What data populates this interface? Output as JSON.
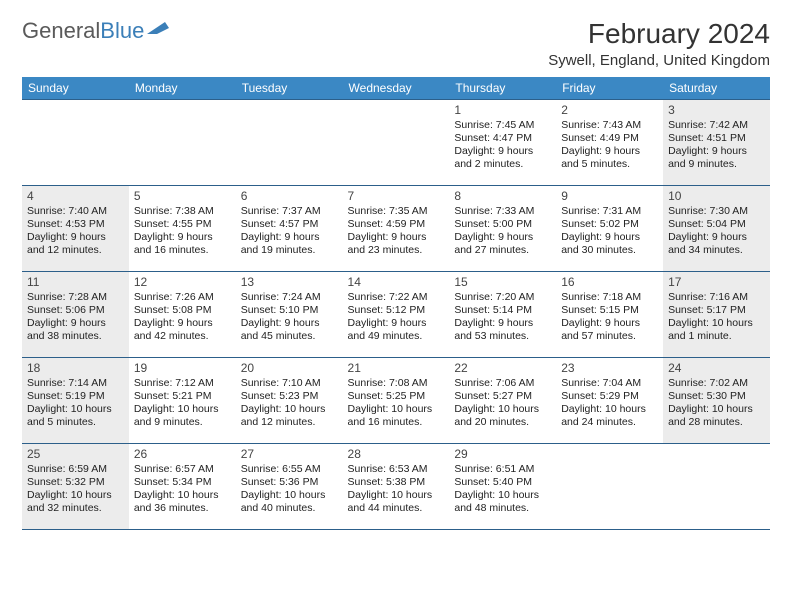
{
  "logo": {
    "text1": "General",
    "text2": "Blue"
  },
  "title": "February 2024",
  "location": "Sywell, England, United Kingdom",
  "colors": {
    "header_bg": "#3b88c4",
    "header_text": "#ffffff",
    "border": "#2c5f8a",
    "shade_bg": "#ececec",
    "text": "#222222",
    "logo_gray": "#5a5a5a",
    "logo_blue": "#3b7fb8"
  },
  "day_headers": [
    "Sunday",
    "Monday",
    "Tuesday",
    "Wednesday",
    "Thursday",
    "Friday",
    "Saturday"
  ],
  "weeks": [
    [
      {
        "empty": true
      },
      {
        "empty": true
      },
      {
        "empty": true
      },
      {
        "empty": true
      },
      {
        "n": "1",
        "sr": "Sunrise: 7:45 AM",
        "ss": "Sunset: 4:47 PM",
        "d1": "Daylight: 9 hours",
        "d2": "and 2 minutes."
      },
      {
        "n": "2",
        "sr": "Sunrise: 7:43 AM",
        "ss": "Sunset: 4:49 PM",
        "d1": "Daylight: 9 hours",
        "d2": "and 5 minutes."
      },
      {
        "n": "3",
        "sr": "Sunrise: 7:42 AM",
        "ss": "Sunset: 4:51 PM",
        "d1": "Daylight: 9 hours",
        "d2": "and 9 minutes.",
        "shade": true
      }
    ],
    [
      {
        "n": "4",
        "sr": "Sunrise: 7:40 AM",
        "ss": "Sunset: 4:53 PM",
        "d1": "Daylight: 9 hours",
        "d2": "and 12 minutes.",
        "shade": true
      },
      {
        "n": "5",
        "sr": "Sunrise: 7:38 AM",
        "ss": "Sunset: 4:55 PM",
        "d1": "Daylight: 9 hours",
        "d2": "and 16 minutes."
      },
      {
        "n": "6",
        "sr": "Sunrise: 7:37 AM",
        "ss": "Sunset: 4:57 PM",
        "d1": "Daylight: 9 hours",
        "d2": "and 19 minutes."
      },
      {
        "n": "7",
        "sr": "Sunrise: 7:35 AM",
        "ss": "Sunset: 4:59 PM",
        "d1": "Daylight: 9 hours",
        "d2": "and 23 minutes."
      },
      {
        "n": "8",
        "sr": "Sunrise: 7:33 AM",
        "ss": "Sunset: 5:00 PM",
        "d1": "Daylight: 9 hours",
        "d2": "and 27 minutes."
      },
      {
        "n": "9",
        "sr": "Sunrise: 7:31 AM",
        "ss": "Sunset: 5:02 PM",
        "d1": "Daylight: 9 hours",
        "d2": "and 30 minutes."
      },
      {
        "n": "10",
        "sr": "Sunrise: 7:30 AM",
        "ss": "Sunset: 5:04 PM",
        "d1": "Daylight: 9 hours",
        "d2": "and 34 minutes.",
        "shade": true
      }
    ],
    [
      {
        "n": "11",
        "sr": "Sunrise: 7:28 AM",
        "ss": "Sunset: 5:06 PM",
        "d1": "Daylight: 9 hours",
        "d2": "and 38 minutes.",
        "shade": true
      },
      {
        "n": "12",
        "sr": "Sunrise: 7:26 AM",
        "ss": "Sunset: 5:08 PM",
        "d1": "Daylight: 9 hours",
        "d2": "and 42 minutes."
      },
      {
        "n": "13",
        "sr": "Sunrise: 7:24 AM",
        "ss": "Sunset: 5:10 PM",
        "d1": "Daylight: 9 hours",
        "d2": "and 45 minutes."
      },
      {
        "n": "14",
        "sr": "Sunrise: 7:22 AM",
        "ss": "Sunset: 5:12 PM",
        "d1": "Daylight: 9 hours",
        "d2": "and 49 minutes."
      },
      {
        "n": "15",
        "sr": "Sunrise: 7:20 AM",
        "ss": "Sunset: 5:14 PM",
        "d1": "Daylight: 9 hours",
        "d2": "and 53 minutes."
      },
      {
        "n": "16",
        "sr": "Sunrise: 7:18 AM",
        "ss": "Sunset: 5:15 PM",
        "d1": "Daylight: 9 hours",
        "d2": "and 57 minutes."
      },
      {
        "n": "17",
        "sr": "Sunrise: 7:16 AM",
        "ss": "Sunset: 5:17 PM",
        "d1": "Daylight: 10 hours",
        "d2": "and 1 minute.",
        "shade": true
      }
    ],
    [
      {
        "n": "18",
        "sr": "Sunrise: 7:14 AM",
        "ss": "Sunset: 5:19 PM",
        "d1": "Daylight: 10 hours",
        "d2": "and 5 minutes.",
        "shade": true
      },
      {
        "n": "19",
        "sr": "Sunrise: 7:12 AM",
        "ss": "Sunset: 5:21 PM",
        "d1": "Daylight: 10 hours",
        "d2": "and 9 minutes."
      },
      {
        "n": "20",
        "sr": "Sunrise: 7:10 AM",
        "ss": "Sunset: 5:23 PM",
        "d1": "Daylight: 10 hours",
        "d2": "and 12 minutes."
      },
      {
        "n": "21",
        "sr": "Sunrise: 7:08 AM",
        "ss": "Sunset: 5:25 PM",
        "d1": "Daylight: 10 hours",
        "d2": "and 16 minutes."
      },
      {
        "n": "22",
        "sr": "Sunrise: 7:06 AM",
        "ss": "Sunset: 5:27 PM",
        "d1": "Daylight: 10 hours",
        "d2": "and 20 minutes."
      },
      {
        "n": "23",
        "sr": "Sunrise: 7:04 AM",
        "ss": "Sunset: 5:29 PM",
        "d1": "Daylight: 10 hours",
        "d2": "and 24 minutes."
      },
      {
        "n": "24",
        "sr": "Sunrise: 7:02 AM",
        "ss": "Sunset: 5:30 PM",
        "d1": "Daylight: 10 hours",
        "d2": "and 28 minutes.",
        "shade": true
      }
    ],
    [
      {
        "n": "25",
        "sr": "Sunrise: 6:59 AM",
        "ss": "Sunset: 5:32 PM",
        "d1": "Daylight: 10 hours",
        "d2": "and 32 minutes.",
        "shade": true
      },
      {
        "n": "26",
        "sr": "Sunrise: 6:57 AM",
        "ss": "Sunset: 5:34 PM",
        "d1": "Daylight: 10 hours",
        "d2": "and 36 minutes."
      },
      {
        "n": "27",
        "sr": "Sunrise: 6:55 AM",
        "ss": "Sunset: 5:36 PM",
        "d1": "Daylight: 10 hours",
        "d2": "and 40 minutes."
      },
      {
        "n": "28",
        "sr": "Sunrise: 6:53 AM",
        "ss": "Sunset: 5:38 PM",
        "d1": "Daylight: 10 hours",
        "d2": "and 44 minutes."
      },
      {
        "n": "29",
        "sr": "Sunrise: 6:51 AM",
        "ss": "Sunset: 5:40 PM",
        "d1": "Daylight: 10 hours",
        "d2": "and 48 minutes."
      },
      {
        "empty": true
      },
      {
        "empty": true
      }
    ]
  ]
}
